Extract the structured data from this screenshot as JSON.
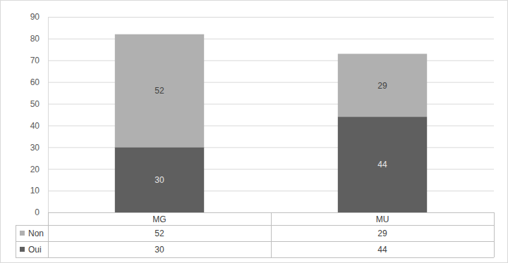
{
  "chart_data": {
    "type": "bar",
    "stacked": true,
    "data_labels": true,
    "grid": true,
    "categories": [
      "MG",
      "MU"
    ],
    "series": [
      {
        "name": "Oui",
        "color": "#5f5f5f",
        "values": [
          30,
          44
        ]
      },
      {
        "name": "Non",
        "color": "#b0b0b0",
        "values": [
          52,
          29
        ]
      }
    ],
    "ylim": [
      0,
      90
    ],
    "yticks": [
      0,
      10,
      20,
      30,
      40,
      50,
      60,
      70,
      80,
      90
    ]
  }
}
